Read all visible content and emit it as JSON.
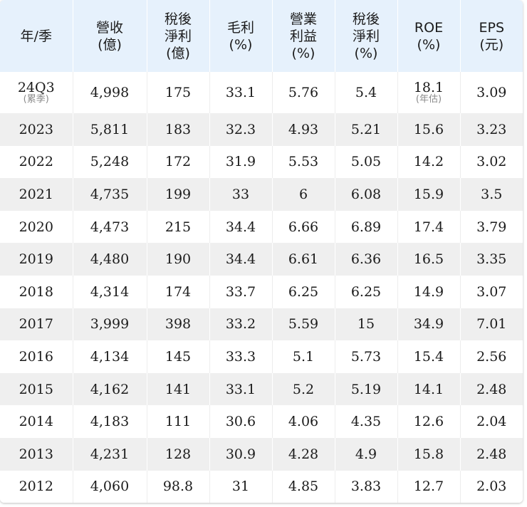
{
  "headers": [
    [
      "年/季"
    ],
    [
      "營收",
      "(億)"
    ],
    [
      "稅後",
      "淨利",
      "(億)"
    ],
    [
      "毛利",
      "(%)"
    ],
    [
      "營業",
      "利益",
      "(%)"
    ],
    [
      "稅後",
      "淨利",
      "(%)"
    ],
    [
      "ROE",
      "(%)"
    ],
    [
      "EPS",
      "(元)"
    ]
  ],
  "rows": [
    {
      "period": "24Q3",
      "period_note": "(累季)",
      "revenue": "4,998",
      "net_income": "175",
      "gross_margin": "33.1",
      "operating_margin": "5.76",
      "net_margin": "5.4",
      "roe": "18.1",
      "roe_note": "(年估)",
      "eps": "3.09"
    },
    {
      "period": "2023",
      "revenue": "5,811",
      "net_income": "183",
      "gross_margin": "32.3",
      "operating_margin": "4.93",
      "net_margin": "5.21",
      "roe": "15.6",
      "eps": "3.23"
    },
    {
      "period": "2022",
      "revenue": "5,248",
      "net_income": "172",
      "gross_margin": "31.9",
      "operating_margin": "5.53",
      "net_margin": "5.05",
      "roe": "14.2",
      "eps": "3.02"
    },
    {
      "period": "2021",
      "revenue": "4,735",
      "net_income": "199",
      "gross_margin": "33",
      "operating_margin": "6",
      "net_margin": "6.08",
      "roe": "15.9",
      "eps": "3.5"
    },
    {
      "period": "2020",
      "revenue": "4,473",
      "net_income": "215",
      "gross_margin": "34.4",
      "operating_margin": "6.66",
      "net_margin": "6.89",
      "roe": "17.4",
      "eps": "3.79"
    },
    {
      "period": "2019",
      "revenue": "4,480",
      "net_income": "190",
      "gross_margin": "34.4",
      "operating_margin": "6.61",
      "net_margin": "6.36",
      "roe": "16.5",
      "eps": "3.35"
    },
    {
      "period": "2018",
      "revenue": "4,314",
      "net_income": "174",
      "gross_margin": "33.7",
      "operating_margin": "6.25",
      "net_margin": "6.25",
      "roe": "14.9",
      "eps": "3.07"
    },
    {
      "period": "2017",
      "revenue": "3,999",
      "net_income": "398",
      "gross_margin": "33.2",
      "operating_margin": "5.59",
      "net_margin": "15",
      "roe": "34.9",
      "eps": "7.01"
    },
    {
      "period": "2016",
      "revenue": "4,134",
      "net_income": "145",
      "gross_margin": "33.3",
      "operating_margin": "5.1",
      "net_margin": "5.73",
      "roe": "15.4",
      "eps": "2.56"
    },
    {
      "period": "2015",
      "revenue": "4,162",
      "net_income": "141",
      "gross_margin": "33.1",
      "operating_margin": "5.2",
      "net_margin": "5.19",
      "roe": "14.1",
      "eps": "2.48"
    },
    {
      "period": "2014",
      "revenue": "4,183",
      "net_income": "111",
      "gross_margin": "30.6",
      "operating_margin": "4.06",
      "net_margin": "4.35",
      "roe": "12.6",
      "eps": "2.04"
    },
    {
      "period": "2013",
      "revenue": "4,231",
      "net_income": "128",
      "gross_margin": "30.9",
      "operating_margin": "4.28",
      "net_margin": "4.9",
      "roe": "15.8",
      "eps": "2.48"
    },
    {
      "period": "2012",
      "revenue": "4,060",
      "net_income": "98.8",
      "gross_margin": "31",
      "operating_margin": "4.85",
      "net_margin": "3.83",
      "roe": "12.7",
      "eps": "2.03"
    }
  ],
  "colors": {
    "header_bg": "#e6f1fc",
    "stripe_bg": "#efefef",
    "text": "#1b1b1b",
    "note": "#8a8a8a"
  }
}
